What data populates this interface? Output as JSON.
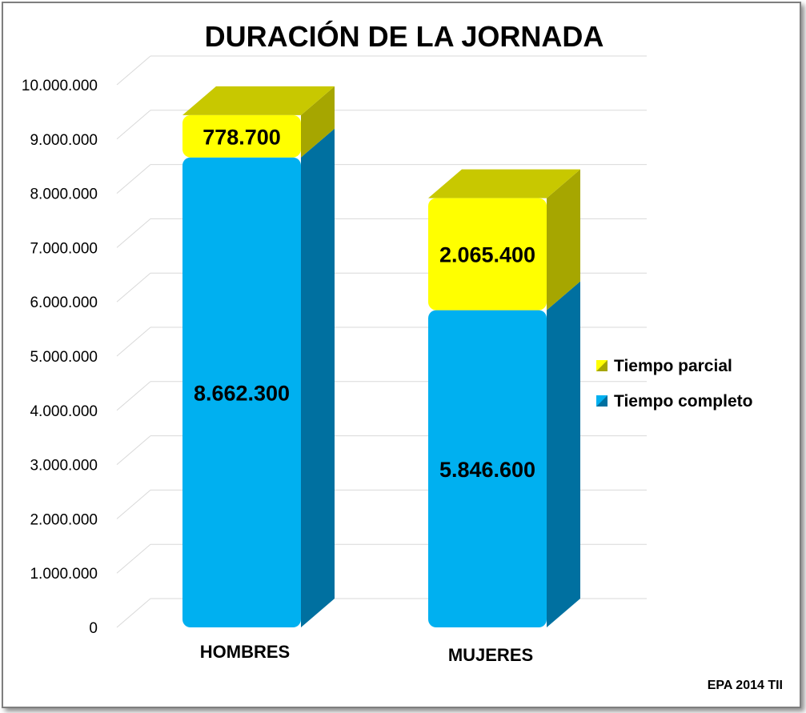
{
  "chart_data": {
    "type": "bar",
    "stacked": true,
    "three_d": true,
    "title": "DURACIÓN DE LA JORNADA",
    "categories": [
      "HOMBRES",
      "MUJERES"
    ],
    "series": [
      {
        "name": "Tiempo completo",
        "values": [
          8662300,
          5846600
        ],
        "labels": [
          "8.662.300",
          "5.846.600"
        ],
        "color": "#00b0f0",
        "side_color": "#0070a0",
        "top_color": "#0092c8"
      },
      {
        "name": "Tiempo parcial",
        "values": [
          778700,
          2065400
        ],
        "labels": [
          "778.700",
          "2.065.400"
        ],
        "color": "#ffff00",
        "side_color": "#a6a600",
        "top_color": "#c8c800"
      }
    ],
    "ylim": [
      0,
      10000000
    ],
    "yticks": [
      {
        "value": 0,
        "label": "0"
      },
      {
        "value": 1000000,
        "label": "1.000.000"
      },
      {
        "value": 2000000,
        "label": "2.000.000"
      },
      {
        "value": 3000000,
        "label": "3.000.000"
      },
      {
        "value": 4000000,
        "label": "4.000.000"
      },
      {
        "value": 5000000,
        "label": "5.000.000"
      },
      {
        "value": 6000000,
        "label": "6.000.000"
      },
      {
        "value": 7000000,
        "label": "7.000.000"
      },
      {
        "value": 8000000,
        "label": "8.000.000"
      },
      {
        "value": 9000000,
        "label": "9.000.000"
      },
      {
        "value": 10000000,
        "label": "10.000.000"
      }
    ],
    "grid": true,
    "legend_position": "right",
    "legend_order": [
      "Tiempo parcial",
      "Tiempo completo"
    ],
    "source_note": "EPA 2014 TII"
  }
}
